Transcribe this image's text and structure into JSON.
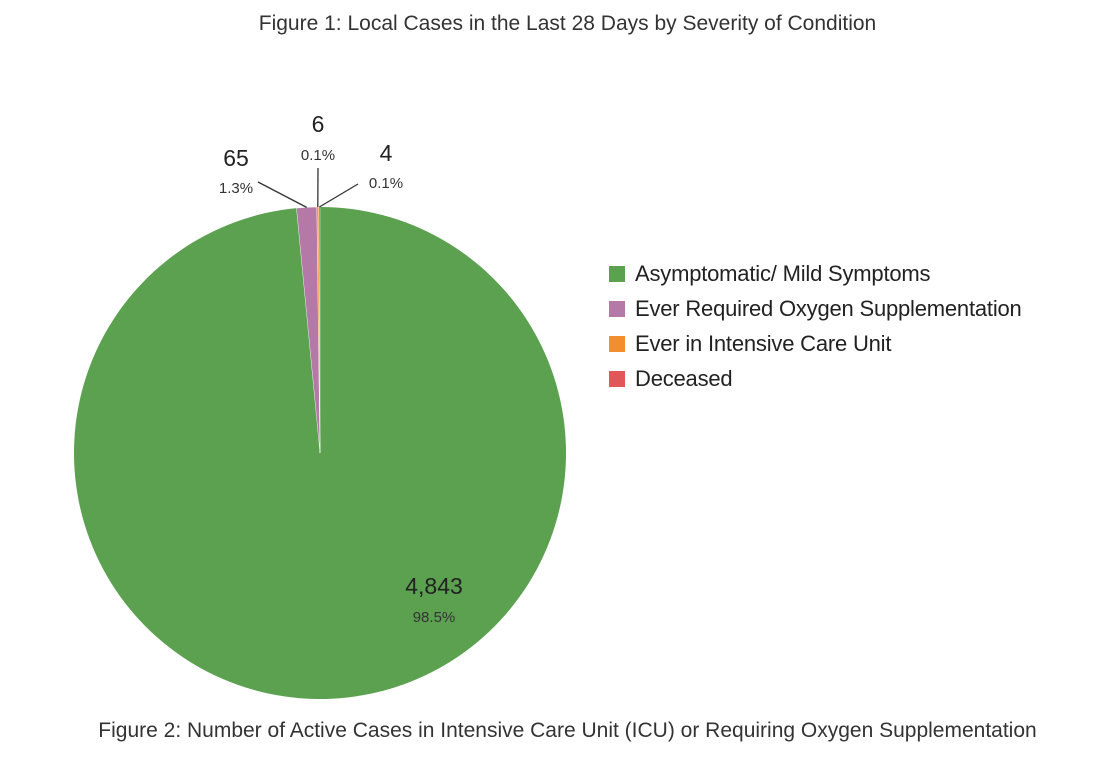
{
  "figure_title": "Figure 1: Local Cases in the Last 28 Days by Severity of Condition",
  "figure_caption": "Figure 2: Number of Active Cases in Intensive Care Unit (ICU) or Requiring Oxygen Supplementation",
  "chart_data": {
    "type": "pie",
    "title": "Figure 1: Local Cases in the Last 28 Days by Severity of Condition",
    "slices": [
      {
        "name": "Asymptomatic/ Mild Symptoms",
        "value": 4843,
        "value_label": "4,843",
        "percent_label": "98.5%",
        "color": "#5ba150"
      },
      {
        "name": "Ever Required Oxygen Supplementation",
        "value": 65,
        "value_label": "65",
        "percent_label": "1.3%",
        "color": "#b579a8"
      },
      {
        "name": "Ever in Intensive Care Unit",
        "value": 6,
        "value_label": "6",
        "percent_label": "0.1%",
        "color": "#f28e2b"
      },
      {
        "name": "Deceased",
        "value": 4,
        "value_label": "4",
        "percent_label": "0.1%",
        "color": "#e15759"
      }
    ],
    "legend_position": "right"
  }
}
